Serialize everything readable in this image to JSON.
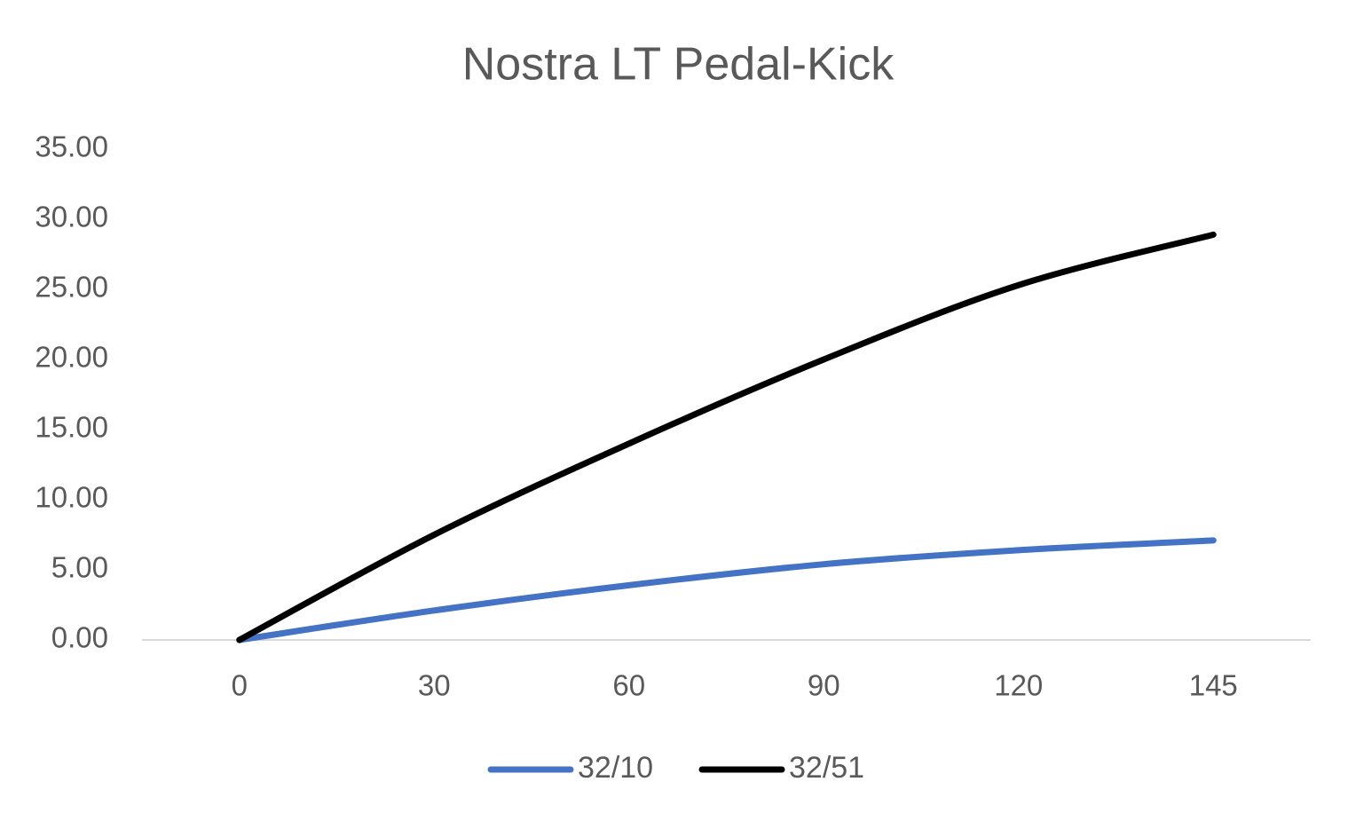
{
  "chart_data": {
    "type": "line",
    "title": "Nostra LT Pedal-Kick",
    "categories": [
      "0",
      "30",
      "60",
      "90",
      "120",
      "145"
    ],
    "series": [
      {
        "name": "32/10",
        "color": "#4472c4",
        "values": [
          0,
          2.1,
          3.9,
          5.4,
          6.4,
          7.1
        ]
      },
      {
        "name": "32/51",
        "color": "#000000",
        "values": [
          0,
          7.5,
          14.0,
          20.0,
          25.3,
          28.9
        ]
      }
    ],
    "ylim": [
      0,
      35
    ],
    "yticks": [
      {
        "value": 0,
        "label": "0.00"
      },
      {
        "value": 5,
        "label": "5.00"
      },
      {
        "value": 10,
        "label": "10.00"
      },
      {
        "value": 15,
        "label": "15.00"
      },
      {
        "value": 20,
        "label": "20.00"
      },
      {
        "value": 25,
        "label": "25.00"
      },
      {
        "value": 30,
        "label": "30.00"
      },
      {
        "value": 35,
        "label": "35.00"
      }
    ],
    "grid": false,
    "smooth": true,
    "legend": "bottom"
  }
}
